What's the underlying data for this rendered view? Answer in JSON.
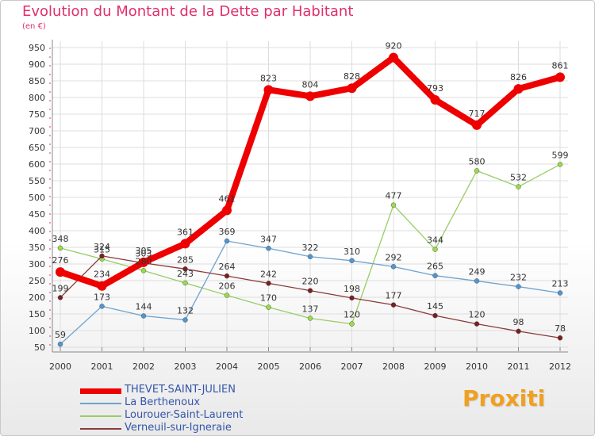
{
  "chart_data": {
    "type": "line",
    "title": "Evolution du Montant de la Dette par Habitant",
    "subtitle": "(en €)",
    "x": [
      "2000",
      "2001",
      "2002",
      "2003",
      "2004",
      "2005",
      "2006",
      "2007",
      "2008",
      "2009",
      "2010",
      "2011",
      "2012"
    ],
    "ylim": [
      50,
      950
    ],
    "yticks": [
      50,
      100,
      150,
      200,
      250,
      300,
      350,
      400,
      450,
      500,
      550,
      600,
      650,
      700,
      750,
      800,
      850,
      900,
      950
    ],
    "grid": true,
    "legend_position": "bottom-left",
    "series": [
      {
        "name": "Lourouer-Saint-Laurent",
        "color": "#99dd44",
        "stroke": "#99cc66",
        "values": [
          348,
          315,
          280,
          243,
          206,
          170,
          137,
          120,
          477,
          344,
          580,
          532,
          599
        ],
        "labels": [
          "348",
          "315",
          "280",
          "243",
          "206",
          "170",
          "137",
          "120",
          "477",
          "344",
          "580",
          "532",
          "599"
        ]
      },
      {
        "name": "La Berthenoux",
        "color": "#4f96d4",
        "stroke": "#6fa3cf",
        "values": [
          59,
          173,
          144,
          132,
          369,
          347,
          322,
          310,
          292,
          265,
          249,
          232,
          213
        ],
        "labels": [
          "59",
          "173",
          "144",
          "132",
          "369",
          "347",
          "322",
          "310",
          "292",
          "265",
          "249",
          "232",
          "213"
        ]
      },
      {
        "name": "Verneuil-sur-Igneraie",
        "color": "#7a1f1f",
        "stroke": "#8a3a3a",
        "values": [
          199,
          324,
          303,
          285,
          264,
          242,
          220,
          198,
          177,
          145,
          120,
          98,
          78
        ],
        "labels": [
          "199",
          "324",
          "303",
          "285",
          "264",
          "242",
          "220",
          "198",
          "177",
          "145",
          "120",
          "98",
          "78"
        ]
      },
      {
        "name": "THEVET-SAINT-JULIEN",
        "color": "#ee0000",
        "stroke": "#ee0000",
        "values": [
          276,
          234,
          305,
          361,
          461,
          823,
          804,
          828,
          920,
          793,
          717,
          826,
          861
        ],
        "labels": [
          "276",
          "234",
          "305",
          "361",
          "461",
          "823",
          "804",
          "828",
          "920",
          "793",
          "717",
          "826",
          "861"
        ]
      }
    ]
  },
  "legend": {
    "items": [
      {
        "label": "THEVET-SAINT-JULIEN",
        "color": "#ee0000",
        "style": "thick"
      },
      {
        "label": "La Berthenoux",
        "color": "#6fa3cf",
        "style": "thin"
      },
      {
        "label": "Lourouer-Saint-Laurent",
        "color": "#99cc66",
        "style": "thin"
      },
      {
        "label": "Verneuil-sur-Igneraie",
        "color": "#8a3a3a",
        "style": "thin"
      }
    ]
  },
  "brand": {
    "text": "Proxiti"
  }
}
